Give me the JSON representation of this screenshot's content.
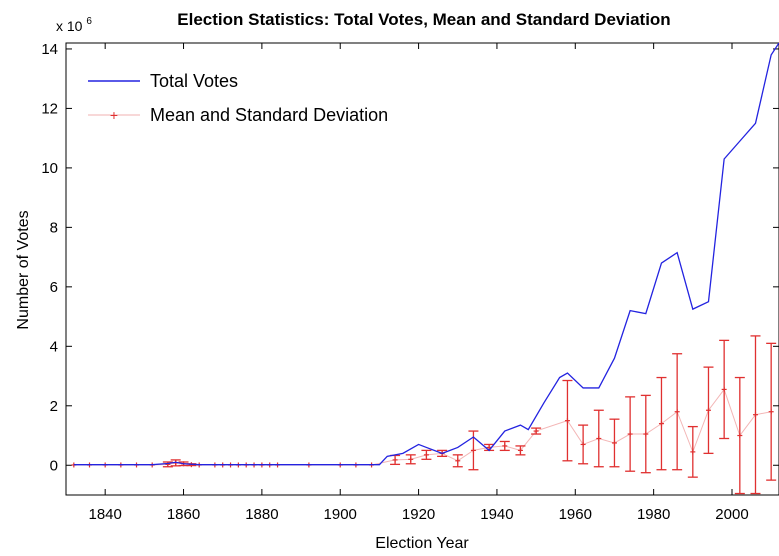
{
  "chart_data": {
    "type": "line",
    "title": "Election Statistics: Total Votes, Mean and Standard Deviation",
    "xlabel": "Election Year",
    "ylabel": "Number of Votes",
    "y_multiplier": "x 10",
    "y_multiplier_exponent": "6",
    "xlim": [
      1830,
      2012
    ],
    "ylim": [
      -1,
      14.2
    ],
    "xticks": [
      1840,
      1860,
      1880,
      1900,
      1920,
      1940,
      1960,
      1980,
      2000
    ],
    "yticks": [
      0,
      2,
      4,
      6,
      8,
      10,
      12,
      14
    ],
    "grid": false,
    "legend_position": "top-left",
    "series": [
      {
        "name": "Total Votes",
        "type": "line",
        "color": "#2323e0",
        "x": [
          1832,
          1836,
          1840,
          1844,
          1848,
          1852,
          1856,
          1858,
          1860,
          1864,
          1868,
          1872,
          1876,
          1880,
          1884,
          1888,
          1892,
          1896,
          1900,
          1904,
          1908,
          1910,
          1912,
          1916,
          1920,
          1922,
          1926,
          1930,
          1934,
          1938,
          1942,
          1946,
          1948,
          1952,
          1956,
          1958,
          1962,
          1966,
          1970,
          1974,
          1978,
          1982,
          1986,
          1990,
          1994,
          1998,
          2002,
          2006,
          2010,
          2012
        ],
        "y": [
          0.02,
          0.02,
          0.02,
          0.02,
          0.02,
          0.02,
          0.06,
          0.1,
          0.05,
          0.02,
          0.02,
          0.02,
          0.02,
          0.02,
          0.02,
          0.02,
          0.02,
          0.02,
          0.02,
          0.02,
          0.02,
          0.02,
          0.3,
          0.4,
          0.7,
          0.6,
          0.4,
          0.6,
          0.95,
          0.5,
          1.15,
          1.35,
          1.2,
          2.1,
          2.95,
          3.1,
          2.6,
          2.6,
          3.6,
          5.2,
          5.1,
          6.8,
          7.15,
          5.25,
          5.5,
          10.3,
          10.9,
          11.5,
          13.8,
          14.2
        ]
      },
      {
        "name": "Mean and Standard Deviation",
        "type": "errorbar",
        "color": "#e03030",
        "x": [
          1832,
          1836,
          1840,
          1844,
          1848,
          1852,
          1856,
          1858,
          1860,
          1862,
          1864,
          1868,
          1870,
          1872,
          1874,
          1876,
          1878,
          1880,
          1882,
          1884,
          1892,
          1900,
          1904,
          1908,
          1914,
          1918,
          1922,
          1926,
          1930,
          1934,
          1938,
          1942,
          1946,
          1950,
          1958,
          1962,
          1966,
          1970,
          1974,
          1978,
          1982,
          1986,
          1990,
          1994,
          1998,
          2002,
          2006,
          2010
        ],
        "y": [
          0.01,
          0.01,
          0.01,
          0.01,
          0.01,
          0.01,
          0.03,
          0.08,
          0.05,
          0.02,
          0.01,
          0.01,
          0.01,
          0.01,
          0.01,
          0.01,
          0.01,
          0.01,
          0.01,
          0.01,
          0.01,
          0.01,
          0.01,
          0.01,
          0.18,
          0.2,
          0.35,
          0.4,
          0.15,
          0.5,
          0.6,
          0.65,
          0.5,
          1.15,
          1.5,
          0.7,
          0.9,
          0.75,
          1.05,
          1.05,
          1.4,
          1.8,
          0.45,
          1.85,
          2.55,
          1.0,
          1.7,
          1.8
        ],
        "err": [
          0.0,
          0.0,
          0.0,
          0.0,
          0.0,
          0.0,
          0.08,
          0.1,
          0.06,
          0.03,
          0.0,
          0.0,
          0.0,
          0.0,
          0.0,
          0.0,
          0.0,
          0.0,
          0.0,
          0.0,
          0.0,
          0.0,
          0.0,
          0.0,
          0.15,
          0.15,
          0.15,
          0.1,
          0.2,
          0.65,
          0.1,
          0.15,
          0.15,
          0.1,
          1.35,
          0.65,
          0.95,
          0.8,
          1.25,
          1.3,
          1.55,
          1.95,
          0.85,
          1.45,
          1.65,
          1.95,
          2.65,
          2.3
        ]
      }
    ]
  }
}
